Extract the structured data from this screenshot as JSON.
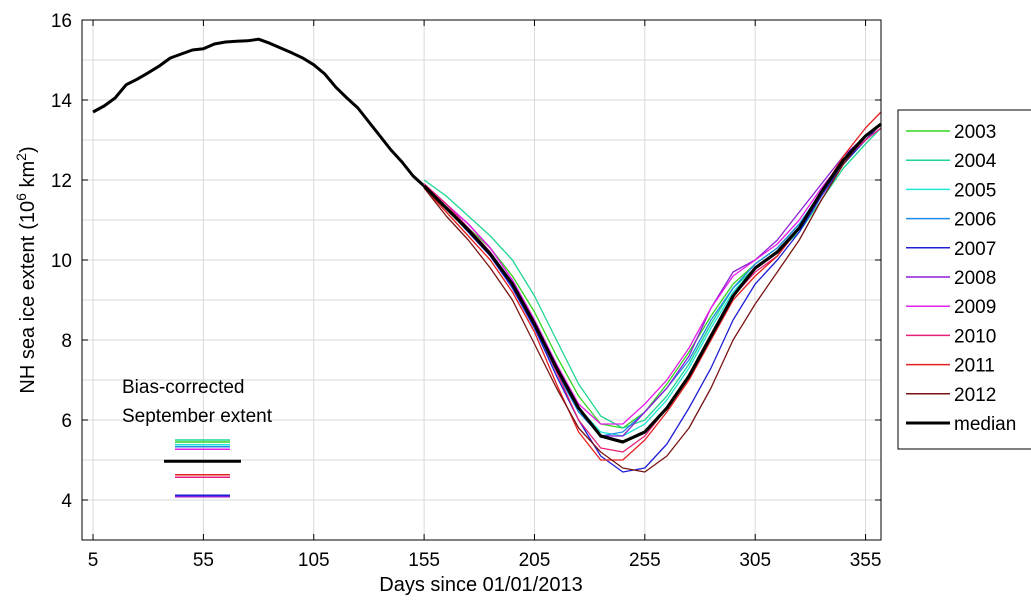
{
  "chart_data": {
    "type": "line",
    "xlabel": "Days since 01/01/2013",
    "ylabel": "NH sea ice extent",
    "ylabel_unit_base": "(10",
    "ylabel_unit_exp": "6",
    "ylabel_unit_km": " km",
    "ylabel_unit_exp2": "2",
    "ylabel_unit_close": ")",
    "xlim": [
      0,
      362
    ],
    "ylim": [
      3,
      16
    ],
    "xticks": [
      5,
      55,
      105,
      155,
      205,
      255,
      305,
      355
    ],
    "yticks": [
      4,
      6,
      8,
      10,
      12,
      14,
      16
    ],
    "grid": true,
    "legend_position": "outside-right",
    "annotation_lines": [
      "Bias-corrected",
      "September extent"
    ],
    "median_early": {
      "x": [
        5,
        10,
        15,
        20,
        25,
        30,
        35,
        40,
        45,
        50,
        55,
        60,
        65,
        70,
        75,
        80,
        85,
        90,
        95,
        100,
        105,
        110,
        115,
        120,
        125,
        130,
        135,
        140,
        145,
        150,
        155
      ],
      "y": [
        13.7,
        13.85,
        14.05,
        14.38,
        14.52,
        14.68,
        14.85,
        15.05,
        15.15,
        15.25,
        15.28,
        15.4,
        15.45,
        15.47,
        15.48,
        15.52,
        15.42,
        15.3,
        15.18,
        15.05,
        14.88,
        14.65,
        14.32,
        14.05,
        13.8,
        13.45,
        13.1,
        12.75,
        12.45,
        12.1,
        11.85
      ]
    },
    "x": [
      155,
      165,
      175,
      185,
      195,
      205,
      215,
      225,
      235,
      245,
      255,
      265,
      275,
      285,
      295,
      305,
      315,
      325,
      335,
      345,
      355,
      362
    ],
    "series": [
      {
        "name": "2003",
        "color": "#33d61f",
        "values": [
          11.9,
          11.4,
          10.8,
          10.3,
          9.6,
          8.7,
          7.6,
          6.6,
          5.9,
          5.8,
          6.2,
          6.9,
          7.7,
          8.6,
          9.4,
          9.9,
          10.3,
          10.9,
          11.7,
          12.4,
          13.0,
          13.4
        ]
      },
      {
        "name": "2004",
        "color": "#1fd690",
        "values": [
          12.0,
          11.6,
          11.1,
          10.6,
          10.0,
          9.1,
          8.0,
          6.9,
          6.1,
          5.8,
          6.0,
          6.6,
          7.4,
          8.4,
          9.3,
          9.8,
          10.2,
          10.7,
          11.5,
          12.3,
          12.9,
          13.3
        ]
      },
      {
        "name": "2005",
        "color": "#1fe6d6",
        "values": [
          11.9,
          11.3,
          10.7,
          10.1,
          9.4,
          8.4,
          7.3,
          6.3,
          5.7,
          5.6,
          5.9,
          6.5,
          7.3,
          8.3,
          9.2,
          9.8,
          10.2,
          10.8,
          11.7,
          12.5,
          13.1,
          13.4
        ]
      },
      {
        "name": "2006",
        "color": "#1f8ce6",
        "values": [
          11.9,
          11.3,
          10.7,
          10.1,
          9.3,
          8.3,
          7.2,
          6.2,
          5.6,
          5.7,
          6.2,
          6.8,
          7.5,
          8.5,
          9.3,
          9.9,
          10.3,
          10.9,
          11.7,
          12.5,
          13.1,
          13.4
        ]
      },
      {
        "name": "2007",
        "color": "#1f1fd6",
        "values": [
          11.9,
          11.3,
          10.7,
          10.1,
          9.3,
          8.3,
          7.1,
          6.0,
          5.1,
          4.7,
          4.8,
          5.4,
          6.3,
          7.3,
          8.5,
          9.4,
          10.0,
          10.7,
          11.6,
          12.4,
          13.0,
          13.4
        ]
      },
      {
        "name": "2008",
        "color": "#8c1fd6",
        "values": [
          11.9,
          11.4,
          10.9,
          10.3,
          9.5,
          8.5,
          7.4,
          6.3,
          5.6,
          5.6,
          6.2,
          6.8,
          7.6,
          8.8,
          9.7,
          10.0,
          10.5,
          11.2,
          11.9,
          12.6,
          13.1,
          13.4
        ]
      },
      {
        "name": "2009",
        "color": "#e61fe6",
        "values": [
          11.9,
          11.4,
          10.9,
          10.3,
          9.5,
          8.5,
          7.4,
          6.4,
          5.9,
          5.9,
          6.4,
          7.0,
          7.8,
          8.8,
          9.6,
          10.0,
          10.4,
          11.0,
          11.8,
          12.5,
          13.0,
          13.3
        ]
      },
      {
        "name": "2010",
        "color": "#e61f7a",
        "values": [
          11.9,
          11.4,
          10.8,
          10.2,
          9.4,
          8.4,
          7.2,
          6.0,
          5.3,
          5.2,
          5.6,
          6.3,
          7.1,
          8.1,
          9.1,
          9.7,
          10.1,
          10.8,
          11.7,
          12.5,
          13.0,
          13.3
        ]
      },
      {
        "name": "2011",
        "color": "#e61f1f",
        "values": [
          11.8,
          11.2,
          10.6,
          10.0,
          9.2,
          8.2,
          6.9,
          5.7,
          5.0,
          5.0,
          5.5,
          6.2,
          7.0,
          8.0,
          9.0,
          9.6,
          10.1,
          10.8,
          11.7,
          12.6,
          13.3,
          13.7
        ]
      },
      {
        "name": "2012",
        "color": "#7a1414",
        "values": [
          11.8,
          11.1,
          10.5,
          9.8,
          9.0,
          7.9,
          6.8,
          5.8,
          5.2,
          4.8,
          4.7,
          5.1,
          5.8,
          6.8,
          8.0,
          8.9,
          9.7,
          10.5,
          11.5,
          12.4,
          13.1,
          13.4
        ]
      },
      {
        "name": "median",
        "color": "#000000",
        "values": [
          11.85,
          11.3,
          10.75,
          10.15,
          9.4,
          8.4,
          7.3,
          6.3,
          5.6,
          5.45,
          5.7,
          6.3,
          7.1,
          8.1,
          9.1,
          9.8,
          10.2,
          10.8,
          11.7,
          12.5,
          13.1,
          13.4
        ]
      }
    ],
    "september_extent": [
      {
        "color": "#1fd690",
        "value": 5.5
      },
      {
        "color": "#33d61f",
        "value": 5.45
      },
      {
        "color": "#1fe6d6",
        "value": 5.38
      },
      {
        "color": "#1f8ce6",
        "value": 5.33
      },
      {
        "color": "#e61fe6",
        "value": 5.27
      },
      {
        "color": "#000000",
        "value": 4.97,
        "median": true
      },
      {
        "color": "#e61f1f",
        "value": 4.63
      },
      {
        "color": "#e61f7a",
        "value": 4.57
      },
      {
        "color": "#1f1fd6",
        "value": 4.12
      },
      {
        "color": "#8c1fd6",
        "value": 4.08
      }
    ]
  }
}
